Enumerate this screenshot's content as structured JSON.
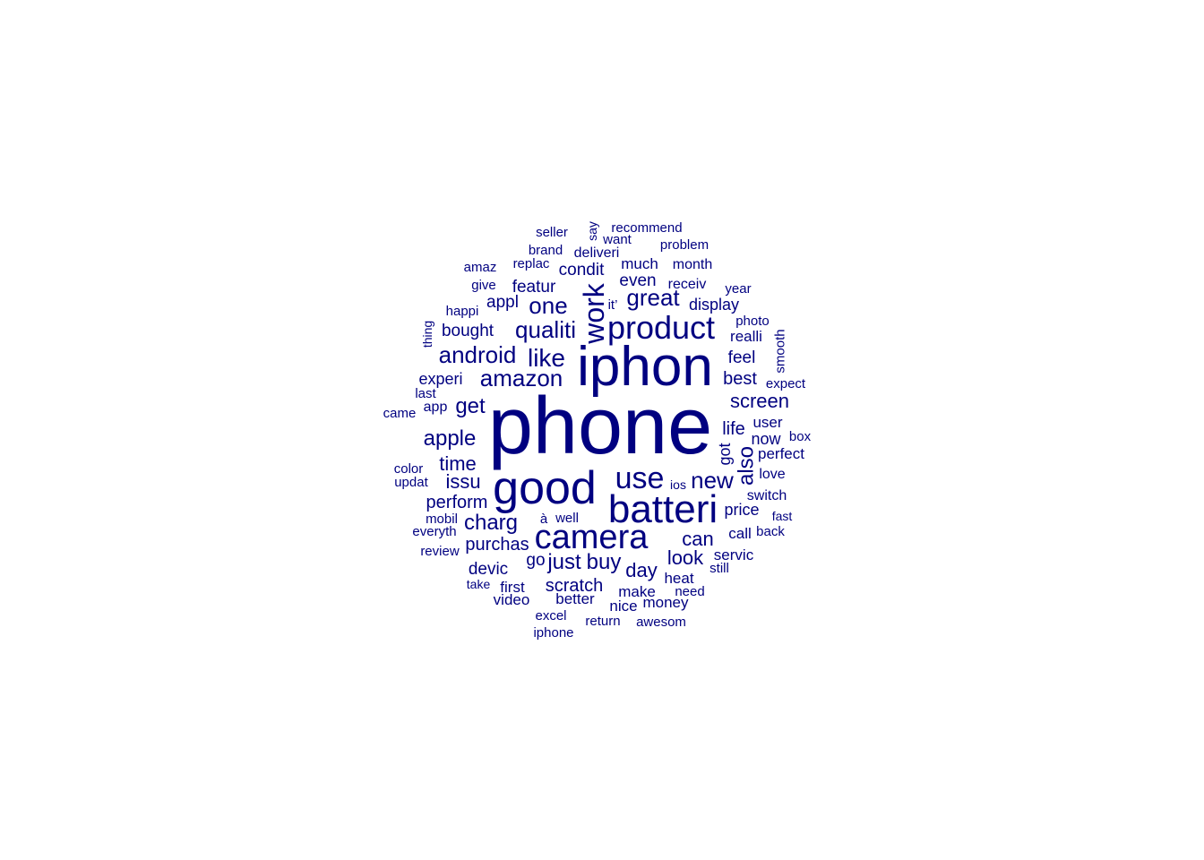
{
  "chart_data": {
    "type": "wordcloud",
    "color": "#000080",
    "words": [
      {
        "text": "phone",
        "rank": 1
      },
      {
        "text": "iphon",
        "rank": 2
      },
      {
        "text": "good",
        "rank": 3
      },
      {
        "text": "batteri",
        "rank": 4
      },
      {
        "text": "camera",
        "rank": 5
      },
      {
        "text": "product",
        "rank": 6
      },
      {
        "text": "use",
        "rank": 7
      },
      {
        "text": "work",
        "rank": 8
      },
      {
        "text": "amazon",
        "rank": 9
      },
      {
        "text": "qualiti",
        "rank": 10
      },
      {
        "text": "android",
        "rank": 11
      },
      {
        "text": "like",
        "rank": 12
      },
      {
        "text": "great",
        "rank": 13
      },
      {
        "text": "new",
        "rank": 14
      },
      {
        "text": "one",
        "rank": 15
      },
      {
        "text": "buy",
        "rank": 16
      },
      {
        "text": "get",
        "rank": 17
      },
      {
        "text": "apple",
        "rank": 18
      },
      {
        "text": "charg",
        "rank": 19
      },
      {
        "text": "just",
        "rank": 20
      },
      {
        "text": "time",
        "rank": 21
      },
      {
        "text": "issu",
        "rank": 22
      },
      {
        "text": "screen",
        "rank": 23
      },
      {
        "text": "can",
        "rank": 24
      },
      {
        "text": "look",
        "rank": 25
      },
      {
        "text": "day",
        "rank": 26
      },
      {
        "text": "also",
        "rank": 27
      },
      {
        "text": "purchas",
        "rank": 28
      },
      {
        "text": "perform",
        "rank": 29
      },
      {
        "text": "life",
        "rank": 30
      },
      {
        "text": "scratch",
        "rank": 31
      },
      {
        "text": "best",
        "rank": 32
      },
      {
        "text": "bought",
        "rank": 33
      },
      {
        "text": "featur",
        "rank": 34
      },
      {
        "text": "even",
        "rank": 35
      },
      {
        "text": "feel",
        "rank": 36
      },
      {
        "text": "devic",
        "rank": 37
      },
      {
        "text": "appl",
        "rank": 38
      },
      {
        "text": "display",
        "rank": 39
      },
      {
        "text": "condit",
        "rank": 40
      },
      {
        "text": "experi",
        "rank": 41
      },
      {
        "text": "price",
        "rank": 42
      },
      {
        "text": "now",
        "rank": 43
      },
      {
        "text": "got",
        "rank": 44
      },
      {
        "text": "much",
        "rank": 45
      },
      {
        "text": "realli",
        "rank": 46
      },
      {
        "text": "go",
        "rank": 47
      },
      {
        "text": "better",
        "rank": 48
      },
      {
        "text": "make",
        "rank": 49
      },
      {
        "text": "money",
        "rank": 50
      },
      {
        "text": "nice",
        "rank": 51
      },
      {
        "text": "heat",
        "rank": 52
      },
      {
        "text": "call",
        "rank": 53
      },
      {
        "text": "first",
        "rank": 54
      },
      {
        "text": "video",
        "rank": 55
      },
      {
        "text": "perfect",
        "rank": 56
      },
      {
        "text": "user",
        "rank": 57
      },
      {
        "text": "servic",
        "rank": 58
      },
      {
        "text": "switch",
        "rank": 59
      },
      {
        "text": "love",
        "rank": 60
      },
      {
        "text": "month",
        "rank": 61
      },
      {
        "text": "receiv",
        "rank": 62
      },
      {
        "text": "problem",
        "rank": 63
      },
      {
        "text": "smooth",
        "rank": 64
      },
      {
        "text": "expect",
        "rank": 65
      },
      {
        "text": "replac",
        "rank": 66
      },
      {
        "text": "deliveri",
        "rank": 67
      },
      {
        "text": "brand",
        "rank": 68
      },
      {
        "text": "seller",
        "rank": 69
      },
      {
        "text": "recommend",
        "rank": 70
      },
      {
        "text": "want",
        "rank": 71
      },
      {
        "text": "say",
        "rank": 72
      },
      {
        "text": "year",
        "rank": 73
      },
      {
        "text": "photo",
        "rank": 74
      },
      {
        "text": "need",
        "rank": 75
      },
      {
        "text": "return",
        "rank": 76
      },
      {
        "text": "excel",
        "rank": 77
      },
      {
        "text": "awesom",
        "rank": 78
      },
      {
        "text": "app",
        "rank": 79
      },
      {
        "text": "mobil",
        "rank": 80
      },
      {
        "text": "everyth",
        "rank": 81
      },
      {
        "text": "color",
        "rank": 82
      },
      {
        "text": "well",
        "rank": 83
      },
      {
        "text": "review",
        "rank": 84
      },
      {
        "text": "updat",
        "rank": 85
      },
      {
        "text": "box",
        "rank": 86
      },
      {
        "text": "back",
        "rank": 87
      },
      {
        "text": "fast",
        "rank": 88
      },
      {
        "text": "still",
        "rank": 89
      },
      {
        "text": "happi",
        "rank": 90
      },
      {
        "text": "amaz",
        "rank": 91
      },
      {
        "text": "give",
        "rank": 92
      },
      {
        "text": "last",
        "rank": 93
      },
      {
        "text": "came",
        "rank": 94
      },
      {
        "text": "thing",
        "rank": 95
      },
      {
        "text": "take",
        "rank": 96
      },
      {
        "text": "iphone",
        "rank": 97
      },
      {
        "text": "it’",
        "rank": 98
      },
      {
        "text": "ios",
        "rank": 99
      },
      {
        "text": "à",
        "rank": 100
      }
    ]
  }
}
